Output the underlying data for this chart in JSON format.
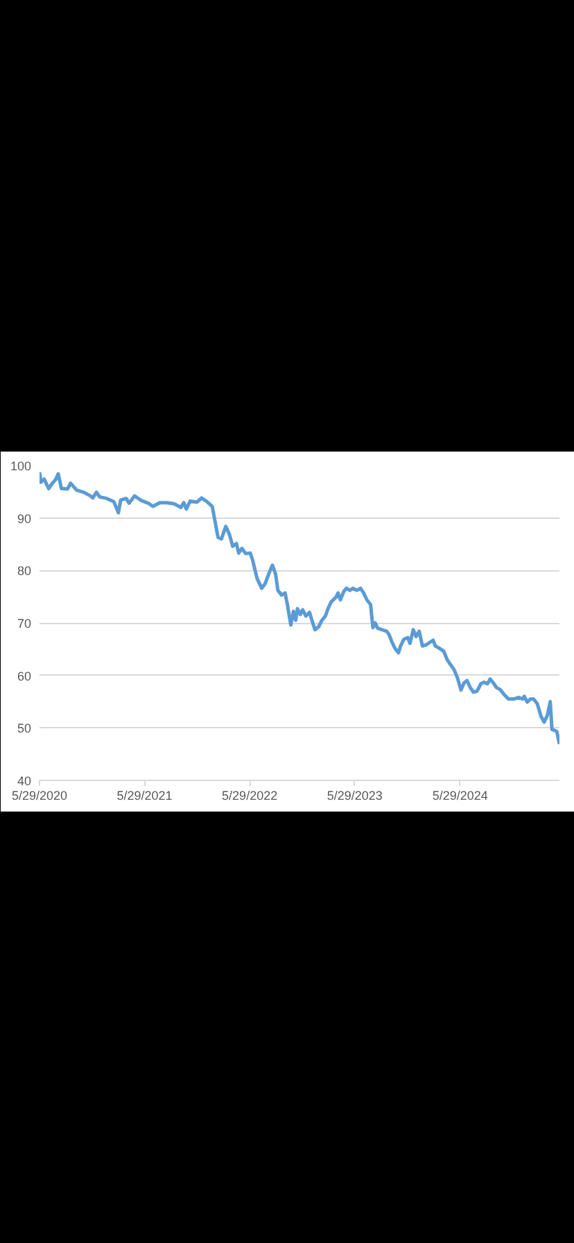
{
  "chart_data": {
    "type": "line",
    "color": "#5b9bd5",
    "line_style": "solid",
    "grid": "y",
    "xlim": [
      "2020-05-29",
      "2025-05-09"
    ],
    "xticks": [
      {
        "value": "2020-05-29",
        "label": "5/29/2020"
      },
      {
        "value": "2021-05-29",
        "label": "5/29/2021"
      },
      {
        "value": "2022-05-29",
        "label": "5/29/2022"
      },
      {
        "value": "2023-05-29",
        "label": "5/29/2023"
      },
      {
        "value": "2024-05-29",
        "label": "5/29/2024"
      }
    ],
    "ylim": [
      40,
      100
    ],
    "yticks": [
      40,
      50,
      60,
      70,
      80,
      90,
      100
    ],
    "x": [
      "2020-05-29",
      "2020-06-03",
      "2020-06-14",
      "2020-06-30",
      "2020-07-11",
      "2020-07-24",
      "2020-08-02",
      "2020-08-13",
      "2020-09-03",
      "2020-09-14",
      "2020-10-05",
      "2020-10-29",
      "2020-11-22",
      "2020-11-30",
      "2020-12-13",
      "2020-12-24",
      "2021-01-18",
      "2021-02-11",
      "2021-02-27",
      "2021-03-07",
      "2021-03-26",
      "2021-04-05",
      "2021-04-24",
      "2021-05-18",
      "2021-06-11",
      "2021-06-27",
      "2021-07-21",
      "2021-08-14",
      "2021-09-08",
      "2021-10-02",
      "2021-10-12",
      "2021-10-21",
      "2021-11-03",
      "2021-11-27",
      "2021-12-13",
      "2021-12-29",
      "2022-01-19",
      "2022-02-08",
      "2022-02-20",
      "2022-03-07",
      "2022-03-20",
      "2022-03-31",
      "2022-04-13",
      "2022-04-21",
      "2022-05-02",
      "2022-05-15",
      "2022-05-31",
      "2022-06-08",
      "2022-06-24",
      "2022-07-10",
      "2022-07-22",
      "2022-08-03",
      "2022-08-16",
      "2022-08-27",
      "2022-09-04",
      "2022-09-17",
      "2022-09-29",
      "2022-10-07",
      "2022-10-19",
      "2022-10-28",
      "2022-11-05",
      "2022-11-11",
      "2022-11-21",
      "2022-11-29",
      "2022-12-10",
      "2022-12-23",
      "2023-01-03",
      "2023-01-11",
      "2023-01-24",
      "2023-02-04",
      "2023-02-16",
      "2023-02-25",
      "2023-03-08",
      "2023-03-25",
      "2023-04-01",
      "2023-04-09",
      "2023-04-21",
      "2023-04-30",
      "2023-05-12",
      "2023-05-23",
      "2023-06-05",
      "2023-06-18",
      "2023-06-29",
      "2023-07-10",
      "2023-07-23",
      "2023-07-31",
      "2023-08-08",
      "2023-08-16",
      "2023-09-01",
      "2023-09-17",
      "2023-09-25",
      "2023-10-04",
      "2023-10-15",
      "2023-10-28",
      "2023-11-04",
      "2023-11-16",
      "2023-11-29",
      "2023-12-07",
      "2023-12-18",
      "2023-12-28",
      "2024-01-08",
      "2024-01-19",
      "2024-02-01",
      "2024-02-14",
      "2024-02-25",
      "2024-03-04",
      "2024-03-17",
      "2024-04-02",
      "2024-04-14",
      "2024-04-25",
      "2024-05-08",
      "2024-05-20",
      "2024-06-01",
      "2024-06-12",
      "2024-06-22",
      "2024-07-03",
      "2024-07-14",
      "2024-07-27",
      "2024-08-09",
      "2024-08-20",
      "2024-09-01",
      "2024-09-10",
      "2024-09-21",
      "2024-10-02",
      "2024-10-15",
      "2024-10-28",
      "2024-11-13",
      "2024-12-03",
      "2024-12-19",
      "2025-01-01",
      "2025-01-07",
      "2025-01-17",
      "2025-01-28",
      "2025-02-08",
      "2025-02-21",
      "2025-03-06",
      "2025-03-17",
      "2025-03-28",
      "2025-04-07",
      "2025-04-13",
      "2025-04-23",
      "2025-04-30",
      "2025-05-09"
    ],
    "values": [
      98.7,
      96.8,
      97.4,
      95.6,
      96.5,
      97.3,
      98.4,
      95.6,
      95.5,
      96.6,
      95.3,
      94.9,
      94.2,
      93.8,
      94.9,
      94.0,
      93.7,
      93.1,
      91.0,
      93.4,
      93.7,
      92.8,
      94.2,
      93.3,
      92.8,
      92.2,
      92.9,
      92.9,
      92.7,
      92.0,
      92.9,
      91.7,
      93.2,
      93.0,
      93.8,
      93.2,
      92.2,
      86.3,
      86.0,
      88.4,
      86.8,
      84.6,
      85.1,
      83.3,
      84.2,
      83.2,
      83.3,
      82.0,
      78.4,
      76.6,
      77.5,
      79.3,
      81.0,
      79.3,
      76.2,
      75.3,
      75.7,
      73.5,
      69.6,
      72.2,
      70.5,
      72.7,
      71.6,
      72.5,
      71.3,
      72.0,
      70.0,
      68.7,
      69.3,
      70.5,
      71.3,
      72.7,
      74.0,
      74.9,
      75.7,
      74.4,
      76.0,
      76.6,
      76.2,
      76.6,
      76.2,
      76.6,
      75.7,
      74.4,
      73.5,
      69.1,
      70.0,
      69.0,
      68.7,
      68.4,
      67.8,
      66.5,
      65.2,
      64.3,
      65.6,
      66.9,
      67.2,
      66.1,
      68.7,
      67.4,
      68.4,
      65.6,
      65.8,
      66.3,
      66.7,
      65.6,
      65.2,
      64.6,
      63.0,
      62.1,
      61.1,
      59.5,
      57.2,
      58.6,
      59.0,
      57.7,
      56.8,
      57.0,
      58.4,
      58.7,
      58.4,
      59.3,
      58.6,
      57.7,
      57.3,
      56.4,
      55.5,
      55.5,
      55.8,
      55.5,
      56.0,
      54.9,
      55.5,
      55.5,
      54.6,
      52.2,
      51.1,
      52.4,
      55.0,
      49.7,
      49.5,
      49.3,
      46.9
    ]
  }
}
